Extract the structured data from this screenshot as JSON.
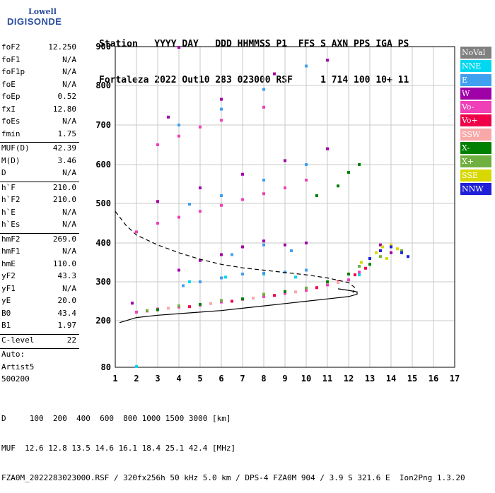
{
  "logo": {
    "line1": "Lowell",
    "line2": "DIGISONDE"
  },
  "header": {
    "row1": "Station   YYYY DAY   DDD HHMMSS P1  FFS S AXN PPS IGA PS",
    "row2": "Fortaleza 2022 Out10 283 023000 RSF     1 714 100 10+ 11"
  },
  "params": [
    {
      "k": "foF2",
      "v": "12.250"
    },
    {
      "k": "foF1",
      "v": "N/A"
    },
    {
      "k": "foF1p",
      "v": "N/A"
    },
    {
      "k": "foE",
      "v": "N/A"
    },
    {
      "k": "foEp",
      "v": "0.52"
    },
    {
      "k": "fxI",
      "v": "12.80"
    },
    {
      "k": "foEs",
      "v": "N/A"
    },
    {
      "k": "fmin",
      "v": "1.75"
    },
    {
      "sep": true
    },
    {
      "k": "MUF(D)",
      "v": "42.39"
    },
    {
      "k": "M(D)",
      "v": "3.46"
    },
    {
      "k": "D",
      "v": "N/A"
    },
    {
      "sep": true
    },
    {
      "k": "h`F",
      "v": "210.0"
    },
    {
      "k": "h`F2",
      "v": "210.0"
    },
    {
      "k": "h`E",
      "v": "N/A"
    },
    {
      "k": "h`Es",
      "v": "N/A"
    },
    {
      "sep": true
    },
    {
      "k": "hmF2",
      "v": "269.0"
    },
    {
      "k": "hmF1",
      "v": "N/A"
    },
    {
      "k": "hmE",
      "v": "110.0"
    },
    {
      "k": "yF2",
      "v": "43.3"
    },
    {
      "k": "yF1",
      "v": "N/A"
    },
    {
      "k": "yE",
      "v": "20.0"
    },
    {
      "k": "B0",
      "v": "43.4"
    },
    {
      "k": "B1",
      "v": "1.97"
    },
    {
      "sep": true
    },
    {
      "k": "C-level",
      "v": "22"
    },
    {
      "sep": true
    },
    {
      "k": "Auto:",
      "v": ""
    },
    {
      "k": "Artist5",
      "v": ""
    },
    {
      "k": "500200",
      "v": ""
    }
  ],
  "legend": [
    {
      "label": "NoVal",
      "color": "#808080"
    },
    {
      "label": "NNE",
      "color": "#00d8f0"
    },
    {
      "label": "E",
      "color": "#3fa0f0"
    },
    {
      "label": "W",
      "color": "#a000a8"
    },
    {
      "label": "Vo-",
      "color": "#f040b8"
    },
    {
      "label": "Vo+",
      "color": "#f00048"
    },
    {
      "label": "SSW",
      "color": "#f8a8a8"
    },
    {
      "label": "X-",
      "color": "#008000"
    },
    {
      "label": "X+",
      "color": "#70b040"
    },
    {
      "label": "SSE",
      "color": "#d8d800"
    },
    {
      "label": "NNW",
      "color": "#2020d8"
    }
  ],
  "footer": {
    "row1": "D     100  200  400  600  800 1000 1500 3000 [km]",
    "row2": "MUF  12.6 12.8 13.5 14.6 16.1 18.4 25.1 42.4 [MHz]",
    "row3": "FZA0M_2022283023000.RSF / 320fx256h 50 kHz 5.0 km / DPS-4 FZA0M 904 / 3.9 S 321.6 E  Ion2Png 1.3.20"
  },
  "chart_data": {
    "type": "scatter",
    "xlabel": "",
    "ylabel": "",
    "xlim": [
      1,
      17
    ],
    "ylim": [
      80,
      900
    ],
    "xticks": [
      "1",
      "2",
      "3",
      "4",
      "5",
      "6",
      "7",
      "8",
      "9",
      "10",
      "11",
      "12",
      "13",
      "14",
      "15",
      "16",
      "17"
    ],
    "yticks": [
      "80",
      "200",
      "300",
      "400",
      "500",
      "600",
      "700",
      "800",
      "900"
    ],
    "grid": true,
    "legend_position": "right",
    "series": [
      {
        "name": "NoVal",
        "color": "#808080",
        "points": []
      },
      {
        "name": "NNE",
        "color": "#00d8f0",
        "points": [
          [
            2.0,
            82
          ],
          [
            4.5,
            300
          ],
          [
            6.2,
            312
          ],
          [
            8.0,
            320
          ],
          [
            9.5,
            312
          ],
          [
            11.0,
            300
          ],
          [
            12.5,
            318
          ]
        ]
      },
      {
        "name": "E",
        "color": "#3fa0f0",
        "points": [
          [
            4.2,
            290
          ],
          [
            5.0,
            300
          ],
          [
            6.0,
            310
          ],
          [
            7.0,
            320
          ],
          [
            8.0,
            322
          ],
          [
            9.0,
            325
          ],
          [
            10.0,
            330
          ],
          [
            6.5,
            370
          ],
          [
            8.0,
            395
          ],
          [
            9.3,
            380
          ],
          [
            4.5,
            498
          ],
          [
            6.0,
            520
          ],
          [
            8.0,
            560
          ],
          [
            10.0,
            600
          ],
          [
            4.0,
            700
          ],
          [
            6.0,
            740
          ],
          [
            8.0,
            790
          ],
          [
            10.0,
            850
          ]
        ]
      },
      {
        "name": "W",
        "color": "#a000a8",
        "points": [
          [
            1.8,
            245
          ],
          [
            4.0,
            330
          ],
          [
            5.0,
            355
          ],
          [
            6.0,
            370
          ],
          [
            7.0,
            390
          ],
          [
            8.0,
            405
          ],
          [
            9.0,
            395
          ],
          [
            10.0,
            400
          ],
          [
            3.0,
            505
          ],
          [
            5.0,
            540
          ],
          [
            7.0,
            575
          ],
          [
            9.0,
            610
          ],
          [
            11.0,
            640
          ],
          [
            14.0,
            375
          ],
          [
            13.5,
            395
          ],
          [
            3.5,
            720
          ],
          [
            6.0,
            765
          ],
          [
            8.5,
            830
          ],
          [
            11.0,
            865
          ],
          [
            4.0,
            898
          ]
        ]
      },
      {
        "name": "Vo-",
        "color": "#f040b8",
        "points": [
          [
            2.0,
            222
          ],
          [
            3.0,
            230
          ],
          [
            4.0,
            235
          ],
          [
            5.0,
            240
          ],
          [
            6.0,
            248
          ],
          [
            7.0,
            255
          ],
          [
            8.0,
            262
          ],
          [
            9.0,
            270
          ],
          [
            10.0,
            278
          ],
          [
            11.0,
            292
          ],
          [
            12.0,
            305
          ],
          [
            12.5,
            325
          ],
          [
            2.0,
            428
          ],
          [
            3.0,
            450
          ],
          [
            4.0,
            465
          ],
          [
            5.0,
            480
          ],
          [
            6.0,
            495
          ],
          [
            7.0,
            510
          ],
          [
            8.0,
            525
          ],
          [
            9.0,
            540
          ],
          [
            10.0,
            560
          ],
          [
            3.0,
            650
          ],
          [
            4.0,
            672
          ],
          [
            5.0,
            695
          ],
          [
            6.0,
            712
          ],
          [
            8.0,
            745
          ]
        ]
      },
      {
        "name": "Vo+",
        "color": "#f00048",
        "points": [
          [
            2.5,
            225
          ],
          [
            4.5,
            236
          ],
          [
            6.5,
            250
          ],
          [
            8.5,
            265
          ],
          [
            10.5,
            285
          ],
          [
            11.5,
            300
          ],
          [
            12.3,
            318
          ],
          [
            12.8,
            335
          ]
        ]
      },
      {
        "name": "SSW",
        "color": "#f8a8a8",
        "points": [
          [
            3.5,
            232
          ],
          [
            5.5,
            244
          ],
          [
            7.5,
            258
          ],
          [
            9.5,
            274
          ],
          [
            11.5,
            298
          ]
        ]
      },
      {
        "name": "X-",
        "color": "#008000",
        "points": [
          [
            3.0,
            228
          ],
          [
            5.0,
            242
          ],
          [
            7.0,
            256
          ],
          [
            9.0,
            275
          ],
          [
            11.0,
            300
          ],
          [
            12.0,
            320
          ],
          [
            13.0,
            345
          ],
          [
            10.5,
            520
          ],
          [
            11.5,
            545
          ],
          [
            12.0,
            580
          ],
          [
            12.5,
            600
          ]
        ]
      },
      {
        "name": "X+",
        "color": "#70b040",
        "points": [
          [
            2.5,
            226
          ],
          [
            4.0,
            238
          ],
          [
            6.0,
            252
          ],
          [
            8.0,
            268
          ],
          [
            10.0,
            284
          ],
          [
            12.5,
            340
          ],
          [
            13.5,
            365
          ],
          [
            14.5,
            380
          ]
        ]
      },
      {
        "name": "SSE",
        "color": "#d8d800",
        "points": [
          [
            12.6,
            350
          ],
          [
            13.0,
            360
          ],
          [
            13.3,
            375
          ],
          [
            13.6,
            390
          ],
          [
            14.0,
            395
          ],
          [
            14.3,
            385
          ],
          [
            13.8,
            360
          ]
        ]
      },
      {
        "name": "NNW",
        "color": "#2020d8",
        "points": [
          [
            13.0,
            360
          ],
          [
            13.5,
            380
          ],
          [
            14.0,
            390
          ],
          [
            14.5,
            375
          ],
          [
            14.8,
            365
          ]
        ]
      }
    ],
    "curves": [
      {
        "name": "profile-dashed",
        "style": "dashed",
        "points": [
          [
            1.0,
            480
          ],
          [
            1.5,
            445
          ],
          [
            2.0,
            420
          ],
          [
            3.0,
            395
          ],
          [
            4.0,
            375
          ],
          [
            5.0,
            358
          ],
          [
            6.0,
            345
          ],
          [
            7.0,
            336
          ],
          [
            8.0,
            330
          ],
          [
            9.0,
            324
          ],
          [
            10.0,
            318
          ],
          [
            11.0,
            310
          ],
          [
            12.0,
            298
          ],
          [
            12.3,
            285
          ],
          [
            12.2,
            272
          ]
        ]
      },
      {
        "name": "profile-solid",
        "style": "solid",
        "points": [
          [
            1.2,
            195
          ],
          [
            2.0,
            208
          ],
          [
            3.0,
            214
          ],
          [
            4.0,
            218
          ],
          [
            5.0,
            222
          ],
          [
            6.0,
            226
          ],
          [
            7.0,
            232
          ],
          [
            8.0,
            238
          ],
          [
            9.0,
            244
          ],
          [
            10.0,
            250
          ],
          [
            11.0,
            256
          ],
          [
            12.0,
            262
          ],
          [
            12.4,
            268
          ],
          [
            12.4,
            274
          ],
          [
            12.0,
            278
          ],
          [
            11.5,
            282
          ]
        ]
      }
    ]
  }
}
